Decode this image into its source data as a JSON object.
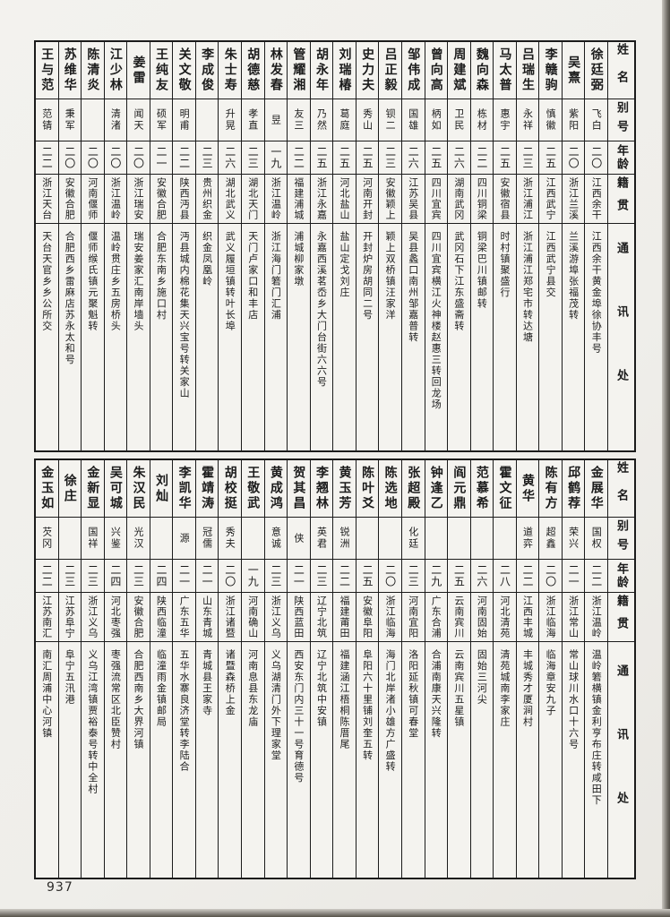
{
  "page_number": "937",
  "header_labels": {
    "name": "姓名",
    "alias": "别号",
    "age": "年龄",
    "native": "籍贯",
    "address": "通讯处"
  },
  "colors": {
    "paper": "#f4f3ef",
    "ink": "#1b1b1b"
  },
  "tables": [
    {
      "people": [
        {
          "name": "徐廷弼",
          "alias": "飞白",
          "age": "二〇",
          "native": "江西余干",
          "address": "江西余干黄金埠徐协丰号"
        },
        {
          "name": "吴熹",
          "alias": "紫阳",
          "age": "二〇",
          "native": "浙江兰溪",
          "address": "兰溪游埠张福茂转"
        },
        {
          "name": "李赣驹",
          "alias": "慎徽",
          "age": "二五",
          "native": "江西武宁",
          "address": "江西武宁县交"
        },
        {
          "name": "吕瑞生",
          "alias": "永祥",
          "age": "二三",
          "native": "浙江浦江",
          "address": "浙江浦江郑宅市转达塘"
        },
        {
          "name": "马太普",
          "alias": "惠宇",
          "age": "二五",
          "native": "安徽宿县",
          "address": "时村镇聚盛行"
        },
        {
          "name": "魏向森",
          "alias": "栋材",
          "age": "二二",
          "native": "四川铜梁",
          "address": "铜梁巴川镇邮转"
        },
        {
          "name": "周建斌",
          "alias": "卫民",
          "age": "二六",
          "native": "湖南武冈",
          "address": "武冈石下江东盛斋转"
        },
        {
          "name": "曾向高",
          "alias": "柄如",
          "age": "二五",
          "native": "四川宜宾",
          "address": "四川宜宾横江火神楼赵惠三转回龙场"
        },
        {
          "name": "邹伟成",
          "alias": "国雄",
          "age": "二六",
          "native": "江苏吴县",
          "address": "吴县蠡口南州邹嘉普转"
        },
        {
          "name": "吕正毅",
          "alias": "钡二",
          "age": "二三",
          "native": "安徽颖上",
          "address": "颖上双桥镇汪家洋"
        },
        {
          "name": "史力夫",
          "alias": "秀山",
          "age": "二五",
          "native": "河南开封",
          "address": "开封炉房胡同二号"
        },
        {
          "name": "刘瑞椿",
          "alias": "葛庭",
          "age": "二五",
          "native": "河北盐山",
          "address": "盐山定戈刘庄"
        },
        {
          "name": "胡永年",
          "alias": "乃然",
          "age": "二五",
          "native": "浙江永嘉",
          "address": "永嘉西溪茗岙乡大门台街六六号"
        },
        {
          "name": "管耀湘",
          "alias": "友三",
          "age": "二二",
          "native": "福建浦城",
          "address": "浦城柳家墩"
        },
        {
          "name": "林发春",
          "alias": "昱",
          "age": "一九",
          "native": "浙江温岭",
          "address": "浙江海门箬门汇浦"
        },
        {
          "name": "胡德慈",
          "alias": "孝直",
          "age": "二三",
          "native": "湖北天门",
          "address": "天门卢家口和丰店"
        },
        {
          "name": "朱士寿",
          "alias": "升晃",
          "age": "二六",
          "native": "湖北武义",
          "address": "武义履垣镇转叶长埠"
        },
        {
          "name": "李成俊",
          "alias": "",
          "age": "二三",
          "native": "贵州织金",
          "address": "织金凤凰岭"
        },
        {
          "name": "关文敬",
          "alias": "明甫",
          "age": "二二",
          "native": "陕西沔县",
          "address": "沔县城内棉花集天兴宝号转关家山"
        },
        {
          "name": "王纯友",
          "alias": "硕军",
          "age": "二一",
          "native": "安徽合肥",
          "address": "合肥东南乡施口村"
        },
        {
          "name": "姜雷",
          "alias": "闻天",
          "age": "二〇",
          "native": "浙江瑞安",
          "address": "瑞安姜家汇南岸墙头"
        },
        {
          "name": "江少林",
          "alias": "清渚",
          "age": "二〇",
          "native": "浙江温岭",
          "address": "温岭贯庄乡五房桥头"
        },
        {
          "name": "陈清炎",
          "alias": "",
          "age": "二〇",
          "native": "河南偃师",
          "address": "偃师缑氏镇元聚魁转"
        },
        {
          "name": "苏维华",
          "alias": "秉军",
          "age": "二〇",
          "native": "安徽合肥",
          "address": "合肥西乡雷麻店苏永太和号"
        },
        {
          "name": "王与范",
          "alias": "范锖",
          "age": "二二",
          "native": "浙江天台",
          "address": "天台天官乡乡公所交"
        }
      ]
    },
    {
      "people": [
        {
          "name": "金展华",
          "alias": "国权",
          "age": "二二",
          "native": "浙江温岭",
          "address": "温岭箬横镇金利亨布庄转咸田下"
        },
        {
          "name": "邱鹤荐",
          "alias": "荣兴",
          "age": "二一",
          "native": "浙江常山",
          "address": "常山球川水口十六号"
        },
        {
          "name": "陈有方",
          "alias": "超鑫",
          "age": "二〇",
          "native": "浙江临海",
          "address": "临海章安九子"
        },
        {
          "name": "黄华",
          "alias": "道弈",
          "age": "二二",
          "native": "江西丰城",
          "address": "丰城秀才厦涧村"
        },
        {
          "name": "霍文征",
          "alias": "",
          "age": "二八",
          "native": "河北清苑",
          "address": "清苑城南李家庄"
        },
        {
          "name": "范慕希",
          "alias": "",
          "age": "二六",
          "native": "河南固始",
          "address": "固始三河尖"
        },
        {
          "name": "阎元鼎",
          "alias": "",
          "age": "二五",
          "native": "云南宾川",
          "address": "云南宾川五星镇"
        },
        {
          "name": "钟逢乙",
          "alias": "",
          "age": "二九",
          "native": "广东合浦",
          "address": "合浦南康天兴隆转"
        },
        {
          "name": "张超殿",
          "alias": "化廷",
          "age": "二三",
          "native": "河南宜阳",
          "address": "洛阳延秋镇可春堂"
        },
        {
          "name": "陈选地",
          "alias": "",
          "age": "二〇",
          "native": "浙江临海",
          "address": "海门北岸渚小雄方广盛转"
        },
        {
          "name": "陈叶爻",
          "alias": "",
          "age": "二五",
          "native": "安徽阜阳",
          "address": "阜阳六十里铺刘奎五转"
        },
        {
          "name": "黄玉芳",
          "alias": "锐洲",
          "age": "二二",
          "native": "福建莆田",
          "address": "福建涵江梧桐陈厝尾"
        },
        {
          "name": "李翘林",
          "alias": "英君",
          "age": "二三",
          "native": "辽宁北筑",
          "address": "辽宁北筑中安镇"
        },
        {
          "name": "贺其昌",
          "alias": "侠",
          "age": "二一",
          "native": "陕西蓝田",
          "address": "西安东门内三十一号育德号"
        },
        {
          "name": "黄成鸿",
          "alias": "意诚",
          "age": "二三",
          "native": "浙江义乌",
          "address": "义乌湖清门外下理家堂"
        },
        {
          "name": "王敬武",
          "alias": "",
          "age": "一九",
          "native": "河南确山",
          "address": "河南息县东龙庙"
        },
        {
          "name": "胡校挺",
          "alias": "秀夫",
          "age": "二〇",
          "native": "浙江诸暨",
          "address": "诸暨森桥上金"
        },
        {
          "name": "霍靖涛",
          "alias": "冠儒",
          "age": "二一",
          "native": "山东青城",
          "address": "青城县王家寺"
        },
        {
          "name": "李凯华",
          "alias": "源",
          "age": "二一",
          "native": "广东五华",
          "address": "五华水寨良济堂转李陆合"
        },
        {
          "name": "刘灿",
          "alias": "",
          "age": "二四",
          "native": "陕西临潼",
          "address": "临潼雨金镇邮局"
        },
        {
          "name": "朱汉民",
          "alias": "光汉",
          "age": "二三",
          "native": "安徽合肥",
          "address": "合肥西南乡大界河镇"
        },
        {
          "name": "吴可城",
          "alias": "兴鉴",
          "age": "二四",
          "native": "河北枣强",
          "address": "枣强流常区北臣赞村"
        },
        {
          "name": "金新显",
          "alias": "国祥",
          "age": "二三",
          "native": "浙江义乌",
          "address": "义乌江湾镇贾裕泰号转中全村"
        },
        {
          "name": "徐庄",
          "alias": "",
          "age": "二三",
          "native": "江苏阜宁",
          "address": "阜宁五汛港"
        },
        {
          "name": "金玉如",
          "alias": "芡冈",
          "age": "二二",
          "native": "江苏南汇",
          "address": "南汇周浦中心河镇"
        }
      ]
    }
  ]
}
